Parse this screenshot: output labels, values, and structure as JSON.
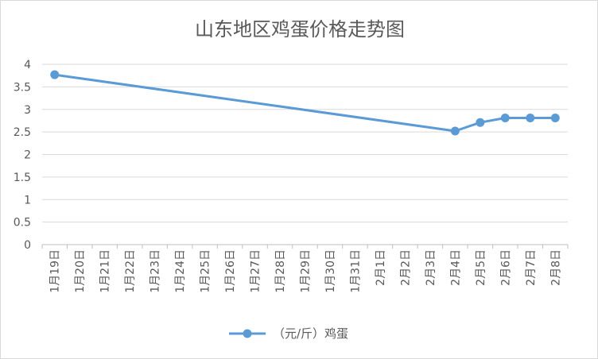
{
  "chart_data": {
    "type": "line",
    "title": "山东地区鸡蛋价格走势图",
    "xlabel": "",
    "ylabel": "",
    "categories": [
      "1月19日",
      "1月20日",
      "1月21日",
      "1月22日",
      "1月23日",
      "1月24日",
      "1月25日",
      "1月26日",
      "1月27日",
      "1月28日",
      "1月29日",
      "1月30日",
      "1月31日",
      "2月1日",
      "2月2日",
      "2月3日",
      "2月4日",
      "2月5日",
      "2月6日",
      "2月7日",
      "2月8日"
    ],
    "series": [
      {
        "name": "（元/斤）鸡蛋",
        "color": "#5b9bd5",
        "values": [
          3.77,
          null,
          null,
          null,
          null,
          null,
          null,
          null,
          null,
          null,
          null,
          null,
          null,
          null,
          null,
          null,
          2.52,
          2.71,
          2.81,
          2.81,
          2.81
        ]
      }
    ],
    "ylim": [
      0,
      4
    ],
    "yticks": [
      "0",
      "0.5",
      "1",
      "1.5",
      "2",
      "2.5",
      "3",
      "3.5",
      "4"
    ],
    "grid": true,
    "gridColor": "#d9d9d9",
    "legend_position": "bottom",
    "legend_label": "（元/斤）鸡蛋"
  }
}
